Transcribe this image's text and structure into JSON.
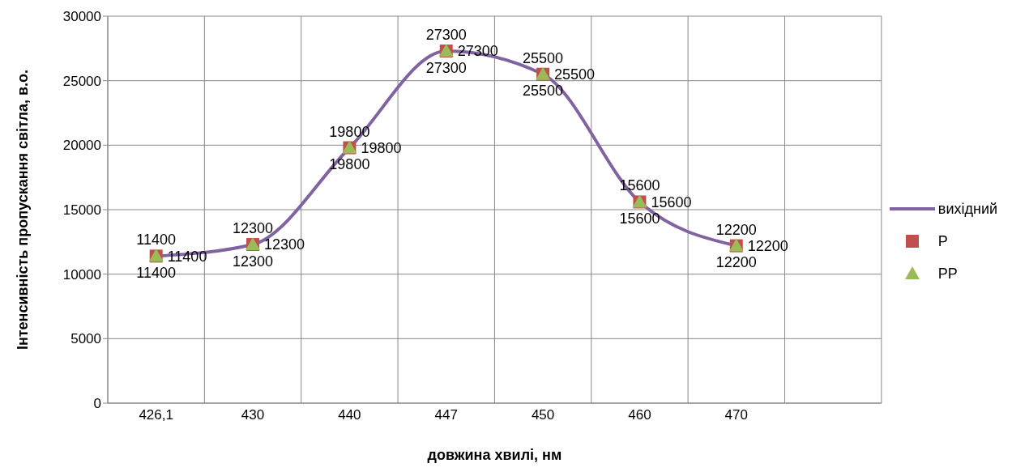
{
  "chart_data": {
    "type": "line",
    "xlabel": "довжина хвилі, нм",
    "ylabel": "Інтенсивність пропускання світла, в.о.",
    "categories": [
      "426,1",
      "430",
      "440",
      "447",
      "450",
      "460",
      "470",
      null
    ],
    "series": [
      {
        "name": "вихідний",
        "color": "#8064a2",
        "marker": "none",
        "values": [
          11400,
          12300,
          19800,
          27300,
          25500,
          15600,
          12200,
          null
        ]
      },
      {
        "name": "Р",
        "type": "scatter",
        "color": "#c0504d",
        "marker": "square",
        "values": [
          11400,
          12300,
          19800,
          27300,
          25500,
          15600,
          12200,
          null
        ]
      },
      {
        "name": "РР",
        "type": "scatter",
        "color": "#9bbb59",
        "marker": "triangle",
        "values": [
          11400,
          12300,
          19800,
          27300,
          25500,
          15600,
          12200,
          null
        ]
      }
    ],
    "ylim": [
      0,
      30000
    ],
    "yticks": [
      0,
      5000,
      10000,
      15000,
      20000,
      25000,
      30000
    ],
    "grid": true,
    "legend": "right",
    "data_labels": true
  }
}
